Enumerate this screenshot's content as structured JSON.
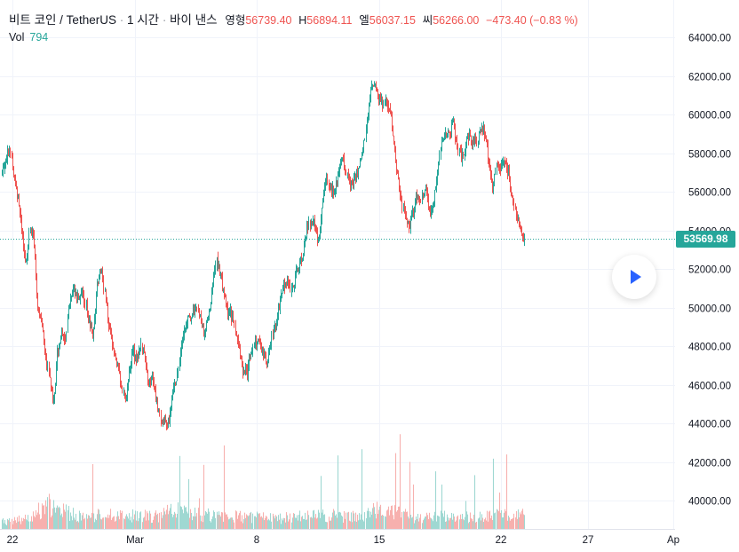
{
  "header": {
    "symbol": "비트 코인 / TetherUS",
    "sep1": "·",
    "interval": "1 시간",
    "sep2": "·",
    "exchange": "바이 낸스",
    "open_label": "영형",
    "open_value": "56739.40",
    "high_label": "H",
    "high_value": "56894.11",
    "low_label": "엘",
    "low_value": "56037.15",
    "close_label": "씨",
    "close_value": "56266.00",
    "change": "−473.40 (−0.83 %)"
  },
  "volume": {
    "label": "Vol",
    "value": "794"
  },
  "colors": {
    "up": "#26a69a",
    "down": "#ef5350",
    "up_vol": "#9fd8d2",
    "down_vol": "#f7b1af",
    "grid": "#f0f3fa",
    "axis_text": "#131722"
  },
  "chart_data": {
    "type": "candlestick",
    "title": "",
    "x_ticks": [
      "22",
      "Mar",
      "8",
      "15",
      "22",
      "27",
      "Ap"
    ],
    "y_ticks": [
      "64000.00",
      "62000.00",
      "60000.00",
      "58000.00",
      "56000.00",
      "54000.00",
      "52000.00",
      "50000.00",
      "48000.00",
      "46000.00",
      "44000.00",
      "42000.00",
      "40000.00"
    ],
    "ylim": [
      38700,
      64650
    ],
    "last_price": "53569.98",
    "price_path": [
      [
        0,
        57000
      ],
      [
        1,
        57800
      ],
      [
        2,
        58300
      ],
      [
        3,
        56500
      ],
      [
        4,
        55800
      ],
      [
        5,
        54000
      ],
      [
        6,
        52000
      ],
      [
        7,
        54200
      ],
      [
        8,
        53500
      ],
      [
        9,
        50000
      ],
      [
        10,
        49500
      ],
      [
        11,
        47500
      ],
      [
        12,
        46200
      ],
      [
        13,
        45000
      ],
      [
        14,
        47800
      ],
      [
        15,
        48500
      ],
      [
        16,
        48200
      ],
      [
        17,
        50200
      ],
      [
        18,
        51000
      ],
      [
        19,
        50500
      ],
      [
        20,
        50800
      ],
      [
        21,
        50200
      ],
      [
        22,
        49300
      ],
      [
        23,
        48500
      ],
      [
        24,
        51000
      ],
      [
        25,
        52000
      ],
      [
        26,
        50700
      ],
      [
        27,
        49000
      ],
      [
        28,
        47800
      ],
      [
        29,
        47200
      ],
      [
        30,
        46200
      ],
      [
        31,
        45100
      ],
      [
        32,
        46500
      ],
      [
        33,
        47800
      ],
      [
        34,
        47200
      ],
      [
        35,
        48200
      ],
      [
        36,
        47300
      ],
      [
        37,
        45800
      ],
      [
        38,
        46600
      ],
      [
        39,
        45200
      ],
      [
        40,
        44100
      ],
      [
        41,
        44200
      ],
      [
        42,
        43900
      ],
      [
        43,
        45500
      ],
      [
        44,
        46300
      ],
      [
        45,
        47700
      ],
      [
        46,
        48800
      ],
      [
        47,
        49300
      ],
      [
        48,
        49500
      ],
      [
        49,
        50000
      ],
      [
        50,
        49400
      ],
      [
        51,
        48600
      ],
      [
        52,
        49400
      ],
      [
        53,
        50600
      ],
      [
        54,
        52500
      ],
      [
        55,
        51800
      ],
      [
        56,
        50700
      ],
      [
        57,
        49900
      ],
      [
        58,
        49600
      ],
      [
        59,
        48800
      ],
      [
        60,
        47700
      ],
      [
        61,
        46500
      ],
      [
        62,
        46700
      ],
      [
        63,
        47700
      ],
      [
        64,
        48200
      ],
      [
        65,
        48400
      ],
      [
        66,
        47600
      ],
      [
        67,
        47200
      ],
      [
        68,
        48200
      ],
      [
        69,
        49200
      ],
      [
        70,
        50000
      ],
      [
        71,
        51000
      ],
      [
        72,
        51500
      ],
      [
        73,
        50800
      ],
      [
        74,
        51600
      ],
      [
        75,
        52300
      ],
      [
        76,
        52800
      ],
      [
        77,
        54000
      ],
      [
        78,
        54500
      ],
      [
        79,
        54200
      ],
      [
        80,
        53200
      ],
      [
        81,
        55500
      ],
      [
        82,
        56800
      ],
      [
        83,
        56200
      ],
      [
        84,
        56000
      ],
      [
        85,
        57000
      ],
      [
        86,
        57800
      ],
      [
        87,
        57000
      ],
      [
        88,
        56300
      ],
      [
        89,
        56800
      ],
      [
        90,
        57000
      ],
      [
        91,
        57800
      ],
      [
        92,
        59300
      ],
      [
        93,
        61000
      ],
      [
        94,
        61700
      ],
      [
        95,
        61000
      ],
      [
        96,
        60500
      ],
      [
        97,
        60800
      ],
      [
        98,
        60200
      ],
      [
        99,
        58600
      ],
      [
        100,
        56700
      ],
      [
        101,
        55500
      ],
      [
        102,
        54600
      ],
      [
        103,
        54300
      ],
      [
        104,
        55100
      ],
      [
        105,
        55900
      ],
      [
        106,
        55600
      ],
      [
        107,
        56400
      ],
      [
        108,
        54800
      ],
      [
        109,
        55400
      ],
      [
        110,
        57000
      ],
      [
        111,
        58500
      ],
      [
        112,
        59200
      ],
      [
        113,
        58800
      ],
      [
        114,
        59600
      ],
      [
        115,
        58400
      ],
      [
        116,
        57800
      ],
      [
        117,
        58300
      ],
      [
        118,
        59000
      ],
      [
        119,
        58500
      ],
      [
        120,
        58600
      ],
      [
        121,
        59300
      ],
      [
        122,
        59100
      ],
      [
        123,
        57500
      ],
      [
        124,
        56200
      ],
      [
        125,
        57600
      ],
      [
        126,
        57200
      ],
      [
        127,
        57800
      ],
      [
        128,
        56900
      ],
      [
        129,
        55700
      ],
      [
        130,
        54600
      ],
      [
        131,
        53900
      ],
      [
        132,
        53570
      ]
    ],
    "volume_path": [
      [
        0,
        3
      ],
      [
        5,
        5
      ],
      [
        10,
        8
      ],
      [
        12,
        12
      ],
      [
        14,
        9
      ],
      [
        20,
        6
      ],
      [
        30,
        7
      ],
      [
        40,
        6
      ],
      [
        43,
        9
      ],
      [
        50,
        7
      ],
      [
        60,
        6
      ],
      [
        70,
        5
      ],
      [
        80,
        7
      ],
      [
        90,
        6
      ],
      [
        93,
        9
      ],
      [
        100,
        8
      ],
      [
        105,
        5
      ],
      [
        110,
        6
      ],
      [
        120,
        6
      ],
      [
        130,
        7
      ],
      [
        132,
        10
      ]
    ]
  }
}
